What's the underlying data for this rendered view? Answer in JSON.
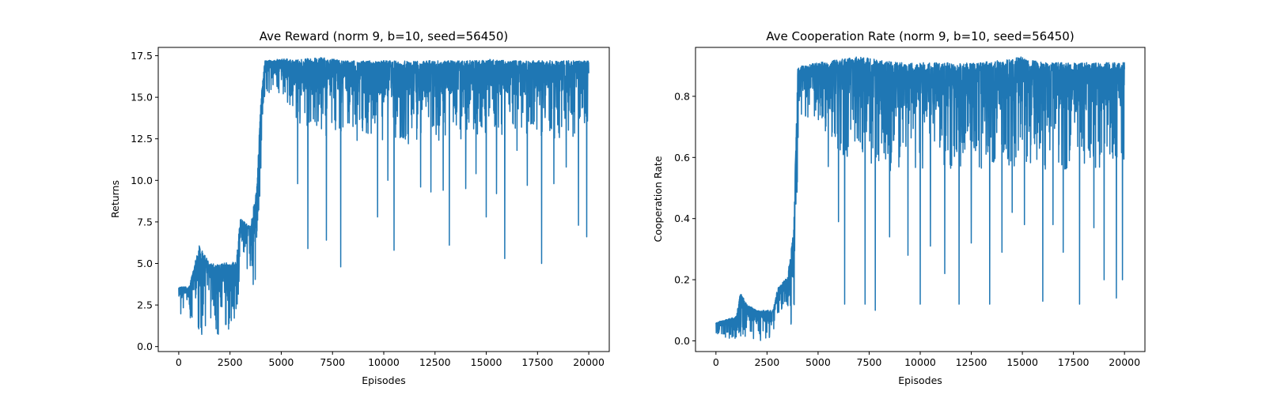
{
  "chart_data": [
    {
      "type": "line",
      "title": "Ave Reward (norm 9, b=10, seed=56450)",
      "xlabel": "Episodes",
      "ylabel": "Returns",
      "xlim": [
        -1000,
        21000
      ],
      "ylim": [
        -0.3,
        18.0
      ],
      "xticks": [
        0,
        2500,
        5000,
        7500,
        10000,
        12500,
        15000,
        17500,
        20000
      ],
      "xtick_labels": [
        "0",
        "2500",
        "5000",
        "7500",
        "10000",
        "12500",
        "15000",
        "17500",
        "20000"
      ],
      "yticks": [
        0.0,
        2.5,
        5.0,
        7.5,
        10.0,
        12.5,
        15.0,
        17.5
      ],
      "ytick_labels": [
        "0.0",
        "2.5",
        "5.0",
        "7.5",
        "10.0",
        "12.5",
        "15.0",
        "17.5"
      ],
      "grid": false,
      "color": "#1f77b4",
      "series": [
        {
          "x": [
            0,
            500,
            1000,
            1500,
            2000,
            2500,
            2800,
            3000,
            3500,
            3800,
            4000,
            4200,
            5000,
            6000,
            7000,
            8000,
            9000,
            10000,
            11000,
            12000,
            13000,
            14000,
            15000,
            16000,
            17000,
            18000,
            19000,
            20000
          ],
          "y_low": [
            2.0,
            1.8,
            0.5,
            0.8,
            0.7,
            0.9,
            1.2,
            4.8,
            4.5,
            2.2,
            10.5,
            15.3,
            15.2,
            13.0,
            12.5,
            12.5,
            12.8,
            12.3,
            12.3,
            12.5,
            12.3,
            12.5,
            12.8,
            12.5,
            12.7,
            12.5,
            12.5,
            12.8
          ],
          "y_high": [
            3.6,
            3.6,
            6.1,
            5.0,
            5.0,
            5.1,
            5.1,
            7.7,
            7.2,
            9.7,
            14.8,
            17.2,
            17.3,
            17.3,
            17.4,
            17.2,
            17.2,
            17.2,
            17.2,
            17.2,
            17.2,
            17.2,
            17.3,
            17.2,
            17.2,
            17.2,
            17.2,
            17.2
          ],
          "dips": [
            [
              5800,
              9.8
            ],
            [
              6300,
              5.9
            ],
            [
              7200,
              6.4
            ],
            [
              7900,
              4.8
            ],
            [
              8700,
              12.4
            ],
            [
              9700,
              7.8
            ],
            [
              10200,
              10.0
            ],
            [
              10500,
              5.8
            ],
            [
              11200,
              12.2
            ],
            [
              11800,
              9.6
            ],
            [
              12300,
              9.3
            ],
            [
              12900,
              9.4
            ],
            [
              13200,
              6.1
            ],
            [
              14000,
              9.5
            ],
            [
              14500,
              10.4
            ],
            [
              15000,
              7.8
            ],
            [
              15500,
              9.2
            ],
            [
              15900,
              5.3
            ],
            [
              16500,
              11.8
            ],
            [
              17000,
              9.7
            ],
            [
              17700,
              5.0
            ],
            [
              18300,
              9.8
            ],
            [
              18900,
              10.8
            ],
            [
              19500,
              7.3
            ],
            [
              19900,
              6.6
            ]
          ]
        }
      ]
    },
    {
      "type": "line",
      "title": "Ave Cooperation Rate (norm 9, b=10, seed=56450)",
      "xlabel": "Episodes",
      "ylabel": "Cooperation Rate",
      "xlim": [
        -1000,
        21000
      ],
      "ylim": [
        -0.035,
        0.96
      ],
      "xticks": [
        0,
        2500,
        5000,
        7500,
        10000,
        12500,
        15000,
        17500,
        20000
      ],
      "xtick_labels": [
        "0",
        "2500",
        "5000",
        "7500",
        "10000",
        "12500",
        "15000",
        "17500",
        "20000"
      ],
      "yticks": [
        0.0,
        0.2,
        0.4,
        0.6,
        0.8
      ],
      "ytick_labels": [
        "0.0",
        "0.2",
        "0.4",
        "0.6",
        "0.8"
      ],
      "grid": false,
      "color": "#1f77b4",
      "series": [
        {
          "x": [
            0,
            500,
            1000,
            1200,
            1500,
            2000,
            2500,
            2800,
            3000,
            3500,
            3800,
            4000,
            4200,
            5000,
            6000,
            7000,
            8000,
            9000,
            10000,
            11000,
            12000,
            13000,
            14000,
            15000,
            16000,
            17000,
            18000,
            19000,
            20000
          ],
          "y_low": [
            0.01,
            0.01,
            0.0,
            0.01,
            0.0,
            0.0,
            0.0,
            0.0,
            0.09,
            0.09,
            0.01,
            0.55,
            0.73,
            0.72,
            0.6,
            0.56,
            0.56,
            0.55,
            0.56,
            0.56,
            0.56,
            0.56,
            0.56,
            0.57,
            0.56,
            0.56,
            0.56,
            0.56,
            0.58
          ],
          "y_high": [
            0.06,
            0.07,
            0.08,
            0.16,
            0.12,
            0.1,
            0.1,
            0.1,
            0.17,
            0.21,
            0.36,
            0.89,
            0.9,
            0.91,
            0.92,
            0.93,
            0.92,
            0.91,
            0.91,
            0.91,
            0.91,
            0.91,
            0.92,
            0.93,
            0.91,
            0.91,
            0.91,
            0.91,
            0.91
          ],
          "dips": [
            [
              5500,
              0.57
            ],
            [
              6000,
              0.39
            ],
            [
              6300,
              0.12
            ],
            [
              7300,
              0.12
            ],
            [
              7800,
              0.1
            ],
            [
              8500,
              0.34
            ],
            [
              9400,
              0.28
            ],
            [
              10000,
              0.12
            ],
            [
              10500,
              0.31
            ],
            [
              11200,
              0.22
            ],
            [
              11900,
              0.12
            ],
            [
              12500,
              0.32
            ],
            [
              13400,
              0.12
            ],
            [
              14000,
              0.29
            ],
            [
              14500,
              0.42
            ],
            [
              15100,
              0.38
            ],
            [
              16000,
              0.13
            ],
            [
              16500,
              0.38
            ],
            [
              17000,
              0.29
            ],
            [
              17800,
              0.12
            ],
            [
              18500,
              0.37
            ],
            [
              19000,
              0.2
            ],
            [
              19600,
              0.14
            ],
            [
              19900,
              0.2
            ]
          ]
        }
      ]
    }
  ]
}
